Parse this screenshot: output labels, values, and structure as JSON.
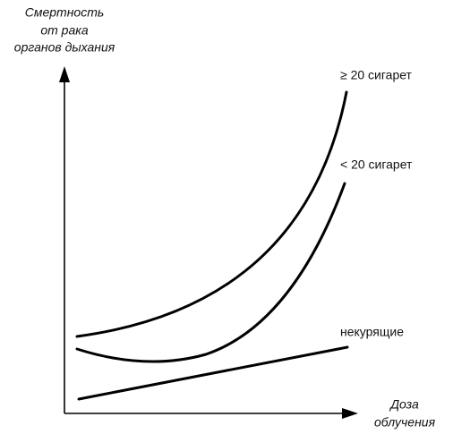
{
  "y_axis_label": [
    "Смертность",
    "от рака",
    "органов дыхания"
  ],
  "x_axis_label": [
    "Доза",
    "облучения"
  ],
  "curves": [
    {
      "label": "≥ 20 сигарет"
    },
    {
      "label": "< 20 сигарет"
    },
    {
      "label": "некурящие"
    }
  ]
}
